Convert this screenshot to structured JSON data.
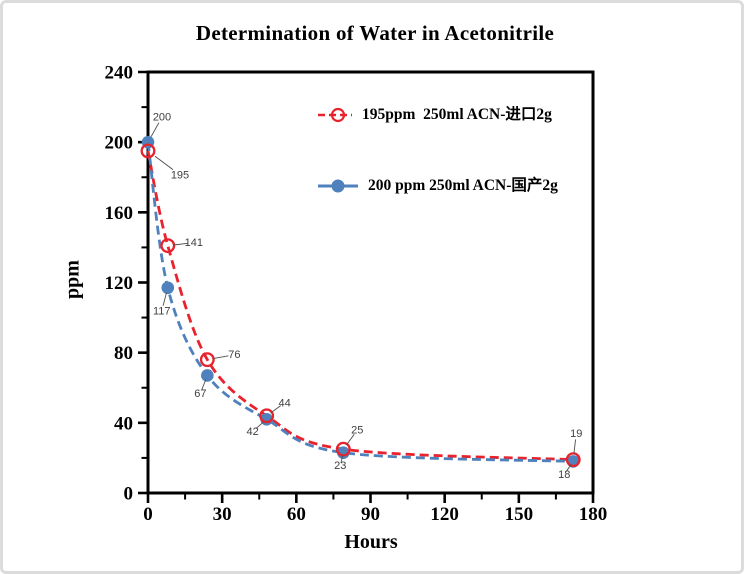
{
  "window": {
    "background": "#ffffff",
    "frame_color": "#dcdcdc"
  },
  "chart_data": {
    "type": "line",
    "title": "Determination of Water in Acetonitrile",
    "xlabel": "Hours",
    "ylabel": "ppm",
    "xlim": [
      0,
      180
    ],
    "ylim": [
      0,
      240
    ],
    "xticks": [
      0,
      30,
      60,
      90,
      120,
      150,
      180
    ],
    "yticks": [
      0,
      40,
      80,
      120,
      160,
      200,
      240
    ],
    "x_minor_interval": 15,
    "y_minor_interval": 20,
    "grid": false,
    "legend_position": "inside-upper-right",
    "axis_color": "#000000",
    "data_label_color": "#404040",
    "x": [
      0,
      8,
      24,
      48,
      79,
      172
    ],
    "series": [
      {
        "name": "195ppm  250ml ACN-进口2g",
        "color": "#e8232d",
        "marker": "open-circle",
        "line_style": "dashed",
        "values": [
          195,
          141,
          76,
          44,
          25,
          19
        ],
        "label_offsets": [
          [
            32,
            24
          ],
          [
            26,
            -3
          ],
          [
            27,
            -5
          ],
          [
            18,
            -13
          ],
          [
            14,
            -19
          ],
          [
            3,
            -26
          ]
        ]
      },
      {
        "name": "200 ppm 250ml ACN-国产2g",
        "color": "#4f81bd",
        "marker": "filled-circle",
        "line_style": "dashed",
        "values": [
          200,
          117,
          67,
          42,
          23,
          18
        ],
        "label_offsets": [
          [
            14,
            -25
          ],
          [
            -6,
            23
          ],
          [
            -7,
            18
          ],
          [
            -14,
            12
          ],
          [
            -3,
            13
          ],
          [
            -9,
            13
          ]
        ]
      }
    ]
  }
}
